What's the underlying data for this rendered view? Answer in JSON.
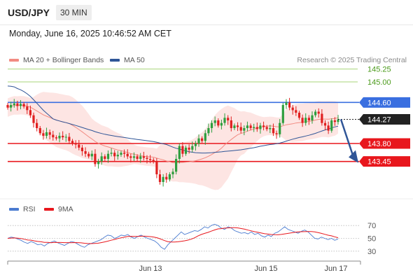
{
  "header": {
    "symbol": "USD/JPY",
    "timeframe": "30 MIN"
  },
  "datetime": "Monday, June 16, 2025 10:46:52 AM CET",
  "legend": {
    "bollinger": {
      "label": "MA 20 + Bollinger Bands",
      "color": "#f28b82"
    },
    "ma50": {
      "label": "MA 50",
      "color": "#2f5597"
    },
    "copyright": "Research © 2025 Trading Central"
  },
  "rsi_legend": {
    "rsi": {
      "label": "RSI",
      "color": "#4a7bd0"
    },
    "ma9": {
      "label": "9MA",
      "color": "#e8171d"
    }
  },
  "chart_data": [
    {
      "type": "candlestick",
      "title": "",
      "ylim": [
        142.75,
        145.3
      ],
      "x_ticks": [
        "Jun 13",
        "Jun 15",
        "Jun 17"
      ],
      "candle_colors": {
        "up": "#2e9e3e",
        "down": "#e02020"
      },
      "levels": [
        {
          "value": 145.25,
          "label": "145.25",
          "color": "#4a9a1a",
          "style": "text"
        },
        {
          "value": 145.0,
          "label": "145.00",
          "color": "#4a9a1a",
          "style": "text"
        },
        {
          "value": 144.6,
          "label": "144.60",
          "color": "#3a6fe0",
          "style": "tag"
        },
        {
          "value": 144.27,
          "label": "144.27",
          "color": "#222222",
          "style": "tag"
        },
        {
          "value": 143.8,
          "label": "143.80",
          "color": "#e8171d",
          "style": "tag"
        },
        {
          "value": 143.45,
          "label": "143.45",
          "color": "#e8171d",
          "style": "tag"
        }
      ],
      "forecast_arrow": {
        "from": 144.27,
        "to": 143.45
      },
      "close": [
        144.5,
        144.55,
        144.58,
        144.53,
        144.57,
        144.52,
        144.45,
        144.35,
        144.2,
        144.1,
        144.0,
        143.95,
        144.02,
        143.97,
        143.92,
        143.9,
        143.95,
        143.92,
        143.93,
        143.85,
        143.8,
        143.78,
        143.72,
        143.65,
        143.6,
        143.55,
        143.6,
        143.4,
        143.45,
        143.55,
        143.5,
        143.6,
        143.62,
        143.55,
        143.58,
        143.62,
        143.6,
        143.55,
        143.52,
        143.55,
        143.5,
        143.55,
        143.52,
        143.5,
        143.48,
        143.45,
        143.2,
        143.05,
        143.15,
        143.1,
        143.2,
        143.25,
        143.5,
        143.75,
        143.6,
        143.72,
        143.68,
        143.75,
        143.8,
        143.9,
        143.85,
        144.0,
        144.1,
        144.2,
        144.25,
        144.15,
        144.2,
        144.3,
        144.25,
        144.1,
        144.15,
        144.12,
        144.05,
        144.1,
        144.15,
        144.1,
        144.12,
        144.08,
        144.15,
        144.12,
        144.08,
        144.1,
        144.0,
        143.98,
        144.2,
        144.55,
        144.6,
        144.5,
        144.45,
        144.4,
        144.3,
        144.2,
        144.3,
        144.25,
        144.35,
        144.42,
        144.38,
        144.2,
        144.15,
        144.05,
        144.25,
        144.22,
        144.27
      ]
    },
    {
      "type": "line",
      "title": "",
      "ylim": [
        20,
        80
      ],
      "y_ticks": [
        70,
        50,
        30
      ],
      "series": [
        {
          "name": "RSI",
          "values": [
            50,
            52,
            51,
            49,
            47,
            44,
            42,
            45,
            43,
            40,
            41,
            38,
            42,
            44,
            46,
            43,
            41,
            39,
            42,
            45,
            44,
            41,
            38,
            36,
            40,
            42,
            44,
            46,
            48,
            52,
            55,
            54,
            50,
            52,
            55,
            54,
            56,
            52,
            50,
            53,
            55,
            52,
            50,
            48,
            46,
            42,
            36,
            33,
            40,
            45,
            50,
            55,
            60,
            56,
            58,
            60,
            62,
            61,
            64,
            68,
            66,
            70,
            72,
            70,
            66,
            64,
            68,
            66,
            62,
            60,
            58,
            59,
            57,
            60,
            56,
            58,
            54,
            52,
            55,
            53,
            58,
            60,
            64,
            68,
            64,
            62,
            60,
            58,
            61,
            63,
            60,
            55,
            50,
            49,
            52,
            50,
            48,
            50,
            47,
            49
          ]
        },
        {
          "name": "9MA",
          "values": [
            50,
            50.4,
            50.6,
            50.2,
            49.8,
            48.6,
            47.4,
            47.2,
            46.1,
            45.2,
            44.6,
            43.7,
            43.7,
            43.2,
            43.7,
            43.6,
            43.6,
            43.4,
            43.3,
            43.2,
            43.5,
            43.3,
            43.0,
            42.4,
            41.9,
            41.8,
            42.1,
            42.4,
            43.3,
            44.4,
            45.6,
            47.1,
            48.3,
            49.7,
            50.9,
            52.0,
            52.9,
            53.2,
            53.1,
            53.1,
            53.4,
            53.4,
            53.1,
            52.6,
            51.7,
            50.5,
            48.6,
            46.5,
            44.9,
            44.3,
            44.2,
            44.6,
            45.4,
            46.2,
            47.3,
            48.7,
            50.9,
            53.7,
            56.0,
            57.8,
            59.3,
            61.2,
            63.1,
            64.7,
            65.2,
            65.9,
            66.3,
            66.7,
            66.6,
            66.2,
            65.3,
            64.3,
            62.9,
            61.7,
            60.4,
            59.4,
            58.3,
            57.2,
            56.6,
            56.0,
            55.7,
            55.6,
            56.1,
            57.0,
            57.8,
            58.6,
            59.4,
            60.1,
            60.4,
            60.5,
            60.7,
            60.6,
            60.0,
            58.9,
            57.8,
            56.3,
            54.9,
            53.9,
            52.4,
            51.0
          ]
        }
      ]
    }
  ],
  "x_labels": [
    "Jun 13",
    "Jun 15",
    "Jun 17"
  ]
}
